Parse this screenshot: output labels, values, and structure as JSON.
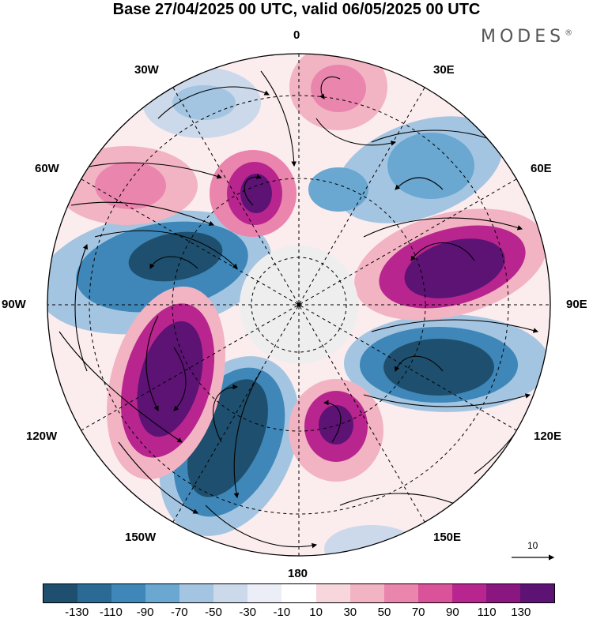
{
  "title": "Base 27/04/2025 00 UTC, valid 06/05/2025 00 UTC",
  "brand": "MODES",
  "brand_mark": "®",
  "longitude_labels": {
    "l0": "0",
    "l30e": "30E",
    "l60e": "60E",
    "l90e": "90E",
    "l120e": "120E",
    "l150e": "150E",
    "l180": "180",
    "l150w": "150W",
    "l120w": "120W",
    "l90w": "90W",
    "l60w": "60W",
    "l30w": "30W"
  },
  "vector_scale_label": "10",
  "colorbar": {
    "colors": [
      "#1f4f6e",
      "#2a6a94",
      "#3e87b8",
      "#6aa7d1",
      "#a4c5e1",
      "#ccd9ea",
      "#eceef7",
      "#ffffff",
      "#f8d7dc",
      "#f2b3c3",
      "#ea85ad",
      "#d9529a",
      "#b8258e",
      "#8a1680",
      "#5c1374"
    ],
    "ticks": [
      "-130",
      "-110",
      "-90",
      "-70",
      "-50",
      "-30",
      "-10",
      "10",
      "30",
      "50",
      "70",
      "90",
      "110",
      "130"
    ]
  },
  "icons": {
    "scale_arrow": "right-arrow",
    "flow_arrows": "arrowhead",
    "pole": "center-dot"
  }
}
